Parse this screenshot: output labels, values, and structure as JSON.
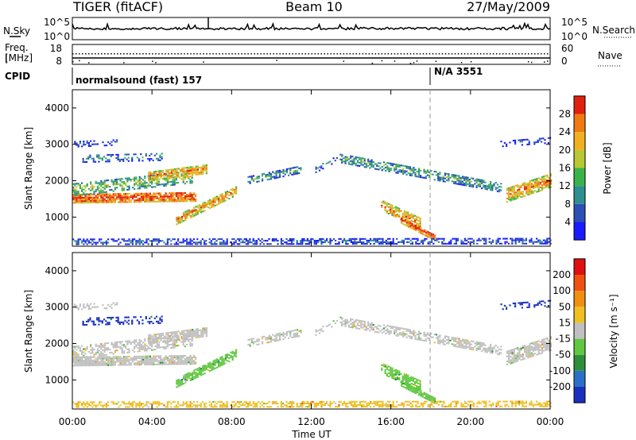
{
  "header": {
    "radar": "TIGER (fitACF)",
    "beam": "Beam 10",
    "date": "27/May/2009"
  },
  "top_panels": {
    "nsky_label": "N.Sky",
    "nsky_ticks": [
      "10^5",
      "10^0"
    ],
    "nsearch_label": "N.Search",
    "freq_label_1": "Freq.",
    "freq_label_2": "[MHz]",
    "freq_ticks": [
      "18",
      "8"
    ],
    "nave_ticks": [
      "60",
      "0"
    ],
    "nave_label": "Nave",
    "cpid_label": "CPID",
    "cpid_segments": [
      {
        "text": "normalsound (fast) 157",
        "start_hour": 0
      },
      {
        "text": "N/A 3551",
        "start_hour": 18
      }
    ]
  },
  "chart_data": [
    {
      "type": "heatmap",
      "title": "Power",
      "xlabel": "",
      "ylabel": "Slant Range [km]",
      "x_range_hours": [
        0,
        24
      ],
      "ylim": [
        200,
        4500
      ],
      "yticks": [
        1000,
        2000,
        3000,
        4000
      ],
      "colorbar": {
        "label": "Power [dB]",
        "ticks": [
          4,
          8,
          12,
          16,
          20,
          24,
          28
        ],
        "colors": [
          "#1a1aff",
          "#2b4fb5",
          "#2d8f8f",
          "#3cb34a",
          "#b8c832",
          "#f0b020",
          "#f07a10",
          "#e02010"
        ]
      }
    },
    {
      "type": "heatmap",
      "title": "Velocity",
      "xlabel": "Time UT",
      "ylabel": "Slant Range [km]",
      "x_range_hours": [
        0,
        24
      ],
      "xticks": [
        "00:00",
        "04:00",
        "08:00",
        "12:00",
        "16:00",
        "20:00",
        "00:00"
      ],
      "ylim": [
        200,
        4500
      ],
      "yticks": [
        1000,
        2000,
        3000,
        4000
      ],
      "colorbar": {
        "label": "Velocity [m s⁻¹]",
        "ticks": [
          200,
          100,
          50,
          15,
          -15,
          -50,
          -100,
          -200
        ],
        "colors": [
          "#1a2fc0",
          "#2a70c8",
          "#2e8f3a",
          "#60c840",
          "#c0c0c0",
          "#f0c020",
          "#f09010",
          "#f05010",
          "#e01010"
        ]
      }
    }
  ]
}
